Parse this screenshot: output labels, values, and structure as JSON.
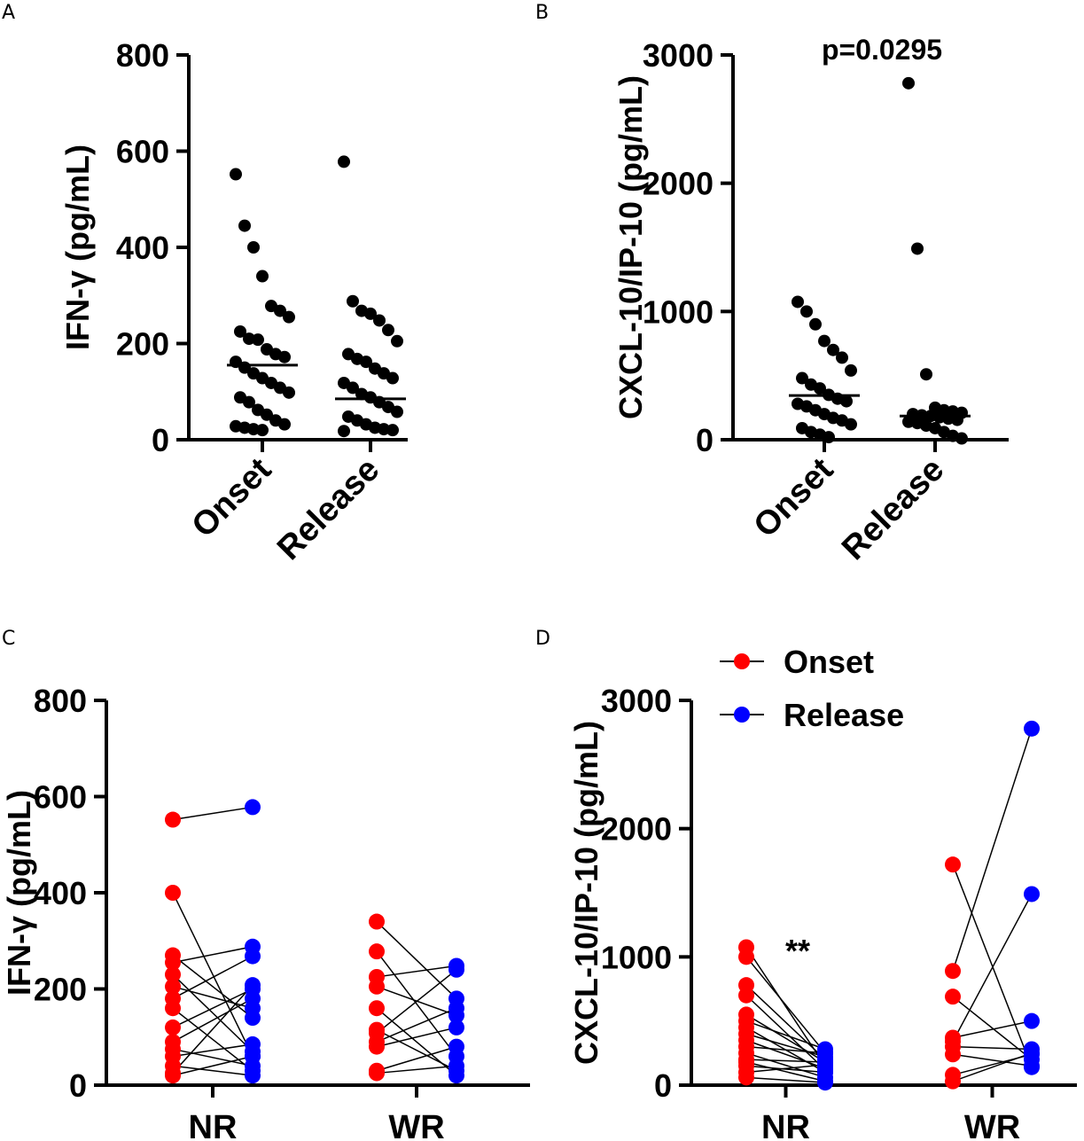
{
  "chart_data": [
    {
      "panel": "A",
      "type": "scatter",
      "ylabel": "IFN-γ (pg/mL)",
      "ylim": [
        0,
        800
      ],
      "yticks": [
        0,
        200,
        400,
        600,
        800
      ],
      "categories": [
        "Onset",
        "Release"
      ],
      "medians": [
        155,
        85
      ],
      "points": [
        [
          552,
          445,
          400,
          340,
          278,
          268,
          255,
          225,
          210,
          208,
          188,
          178,
          172,
          162,
          150,
          138,
          128,
          118,
          108,
          98,
          88,
          78,
          62,
          52,
          40,
          32,
          28,
          25,
          22,
          20
        ],
        [
          578,
          288,
          268,
          262,
          248,
          228,
          205,
          178,
          168,
          162,
          148,
          138,
          128,
          118,
          108,
          95,
          88,
          78,
          68,
          58,
          48,
          40,
          32,
          25,
          22,
          20,
          18
        ]
      ]
    },
    {
      "panel": "B",
      "type": "scatter",
      "ylabel": "CXCL-10/IP-10 (pg/mL)",
      "ylim": [
        0,
        3000
      ],
      "yticks": [
        0,
        1000,
        2000,
        3000
      ],
      "categories": [
        "Onset",
        "Release"
      ],
      "medians": [
        345,
        185
      ],
      "annotation": "p=0.0295",
      "points": [
        [
          1075,
          1000,
          900,
          770,
          700,
          640,
          540,
          480,
          430,
          400,
          350,
          320,
          300,
          280,
          260,
          230,
          200,
          170,
          150,
          120,
          90,
          60,
          40,
          20
        ],
        [
          2780,
          1490,
          510,
          250,
          230,
          220,
          210,
          200,
          190,
          185,
          175,
          165,
          155,
          140,
          130,
          110,
          90,
          60,
          30,
          10
        ]
      ]
    },
    {
      "panel": "C",
      "type": "line",
      "ylabel": "IFN-γ (pg/mL)",
      "ylim": [
        0,
        800
      ],
      "yticks": [
        0,
        200,
        400,
        600,
        800
      ],
      "categories": [
        "NR",
        "WR"
      ],
      "series": [
        {
          "name": "Onset",
          "color": "#ff0000"
        },
        {
          "name": "Release",
          "color": "#0000ff"
        }
      ],
      "pairs": [
        [
          [
            552,
            578
          ],
          [
            400,
            60
          ],
          [
            270,
            140
          ],
          [
            255,
            288
          ],
          [
            230,
            70
          ],
          [
            205,
            160
          ],
          [
            180,
            268
          ],
          [
            160,
            30
          ],
          [
            120,
            200
          ],
          [
            90,
            180
          ],
          [
            75,
            40
          ],
          [
            60,
            85
          ],
          [
            40,
            20
          ],
          [
            25,
            208
          ],
          [
            20,
            60
          ]
        ],
        [
          [
            340,
            180
          ],
          [
            278,
            60
          ],
          [
            225,
            248
          ],
          [
            205,
            145
          ],
          [
            160,
            20
          ],
          [
            115,
            30
          ],
          [
            108,
            240
          ],
          [
            90,
            160
          ],
          [
            80,
            120
          ],
          [
            30,
            80
          ],
          [
            25,
            40
          ]
        ]
      ]
    },
    {
      "panel": "D",
      "type": "line",
      "ylabel": "CXCL-10/IP-10 (pg/mL)",
      "ylim": [
        0,
        3000
      ],
      "yticks": [
        0,
        1000,
        2000,
        3000
      ],
      "categories": [
        "NR",
        "WR"
      ],
      "annotation": "**",
      "series": [
        {
          "name": "Onset",
          "color": "#ff0000"
        },
        {
          "name": "Release",
          "color": "#0000ff"
        }
      ],
      "pairs": [
        [
          [
            1075,
            150
          ],
          [
            1000,
            250
          ],
          [
            780,
            200
          ],
          [
            700,
            120
          ],
          [
            550,
            180
          ],
          [
            500,
            280
          ],
          [
            450,
            100
          ],
          [
            400,
            220
          ],
          [
            350,
            130
          ],
          [
            300,
            250
          ],
          [
            250,
            60
          ],
          [
            200,
            180
          ],
          [
            180,
            30
          ],
          [
            150,
            100
          ],
          [
            100,
            160
          ],
          [
            60,
            20
          ]
        ],
        [
          [
            1720,
            140
          ],
          [
            890,
            2780
          ],
          [
            690,
            200
          ],
          [
            370,
            500
          ],
          [
            340,
            1490
          ],
          [
            300,
            280
          ],
          [
            240,
            150
          ],
          [
            80,
            240
          ],
          [
            30,
            250
          ]
        ]
      ]
    }
  ],
  "legend": {
    "items": [
      {
        "label": "Onset",
        "color": "#ff0000"
      },
      {
        "label": "Release",
        "color": "#0000ff"
      }
    ]
  },
  "panels": {
    "a_letter": "A",
    "b_letter": "B",
    "c_letter": "C",
    "d_letter": "D"
  }
}
